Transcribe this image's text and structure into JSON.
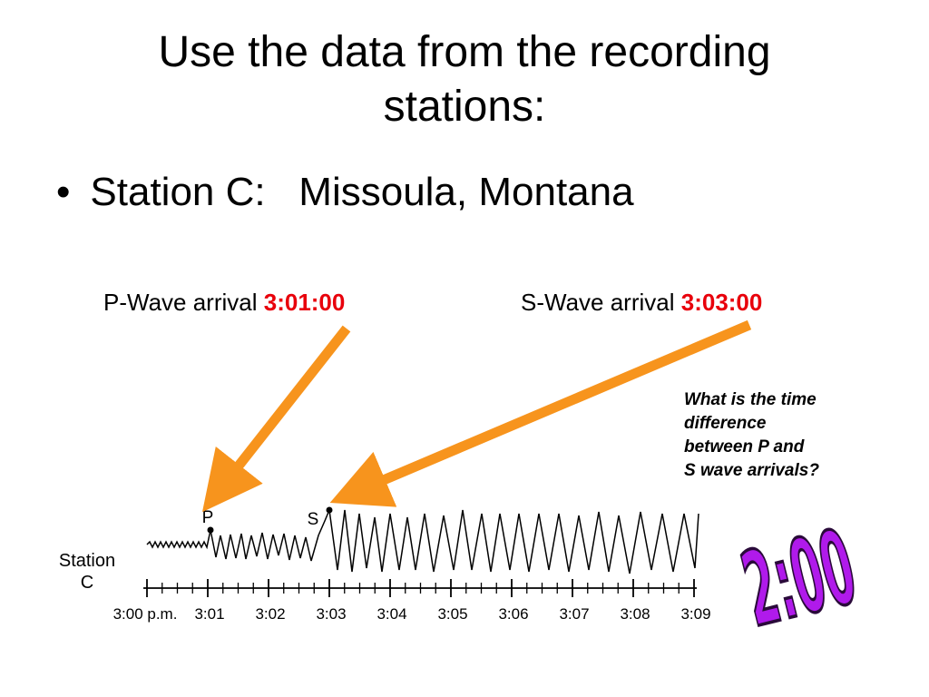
{
  "slide": {
    "title_line1": "Use the data from the recording",
    "title_line2": "stations:",
    "bullet_symbol": "•",
    "bullet_text": "Station C:   Missoula, Montana"
  },
  "labels": {
    "p_wave_label": "P-Wave arrival ",
    "p_wave_time": "3:01:00",
    "s_wave_label": "S-Wave arrival ",
    "s_wave_time": "3:03:00"
  },
  "question": {
    "line1": "What is the time",
    "line2": "difference",
    "line3": "between P and",
    "line4": "S wave arrivals?"
  },
  "answer": "2:00",
  "seismogram": {
    "station_line1": "Station",
    "station_line2": "C",
    "p_marker": "P",
    "s_marker": "S",
    "ticks": [
      "3:00 p.m.",
      "3:01",
      "3:02",
      "3:03",
      "3:04",
      "3:05",
      "3:06",
      "3:07",
      "3:08",
      "3:09"
    ]
  },
  "colors": {
    "arrow": "#f7941d",
    "time_highlight": "#e8000b",
    "answer_fill": "#b01aeb"
  }
}
